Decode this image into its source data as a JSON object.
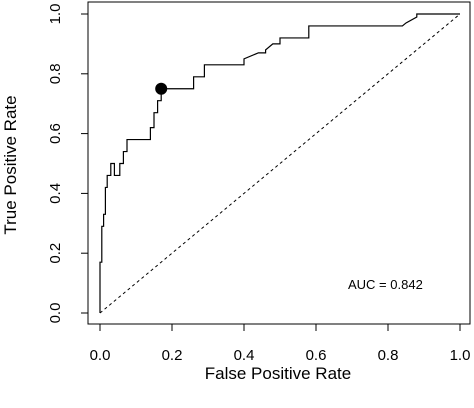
{
  "chart_data": {
    "type": "line",
    "title": "",
    "xlabel": "False Positive Rate",
    "ylabel": "True Positive Rate",
    "xlim": [
      0,
      1
    ],
    "ylim": [
      0,
      1
    ],
    "x_ticks": [
      "0.0",
      "0.2",
      "0.4",
      "0.6",
      "0.8",
      "1.0"
    ],
    "y_ticks": [
      "0.0",
      "0.2",
      "0.4",
      "0.6",
      "0.8",
      "1.0"
    ],
    "grid": false,
    "legend": "none",
    "series": [
      {
        "style": "solid",
        "x": [
          0.0,
          0.0,
          0.005,
          0.005,
          0.01,
          0.01,
          0.015,
          0.015,
          0.02,
          0.02,
          0.03,
          0.03,
          0.04,
          0.04,
          0.055,
          0.055,
          0.065,
          0.065,
          0.075,
          0.075,
          0.14,
          0.14,
          0.15,
          0.15,
          0.16,
          0.16,
          0.17,
          0.17,
          0.26,
          0.26,
          0.29,
          0.29,
          0.4,
          0.4,
          0.44,
          0.46,
          0.46,
          0.48,
          0.5,
          0.5,
          0.58,
          0.58,
          0.84,
          0.85,
          0.85,
          0.88,
          0.88,
          1.0
        ],
        "y": [
          0.0,
          0.17,
          0.17,
          0.29,
          0.29,
          0.33,
          0.33,
          0.42,
          0.42,
          0.46,
          0.46,
          0.5,
          0.5,
          0.46,
          0.46,
          0.5,
          0.5,
          0.54,
          0.54,
          0.58,
          0.58,
          0.62,
          0.62,
          0.67,
          0.67,
          0.71,
          0.71,
          0.75,
          0.75,
          0.79,
          0.79,
          0.83,
          0.83,
          0.85,
          0.87,
          0.87,
          0.88,
          0.9,
          0.9,
          0.92,
          0.92,
          0.96,
          0.96,
          0.97,
          0.97,
          0.99,
          1.0,
          1.0
        ]
      },
      {
        "style": "dashed",
        "x": [
          0,
          1
        ],
        "y": [
          0,
          1
        ]
      }
    ],
    "marker": {
      "x": 0.17,
      "y": 0.75
    },
    "annotation": "AUC = 0.842"
  }
}
